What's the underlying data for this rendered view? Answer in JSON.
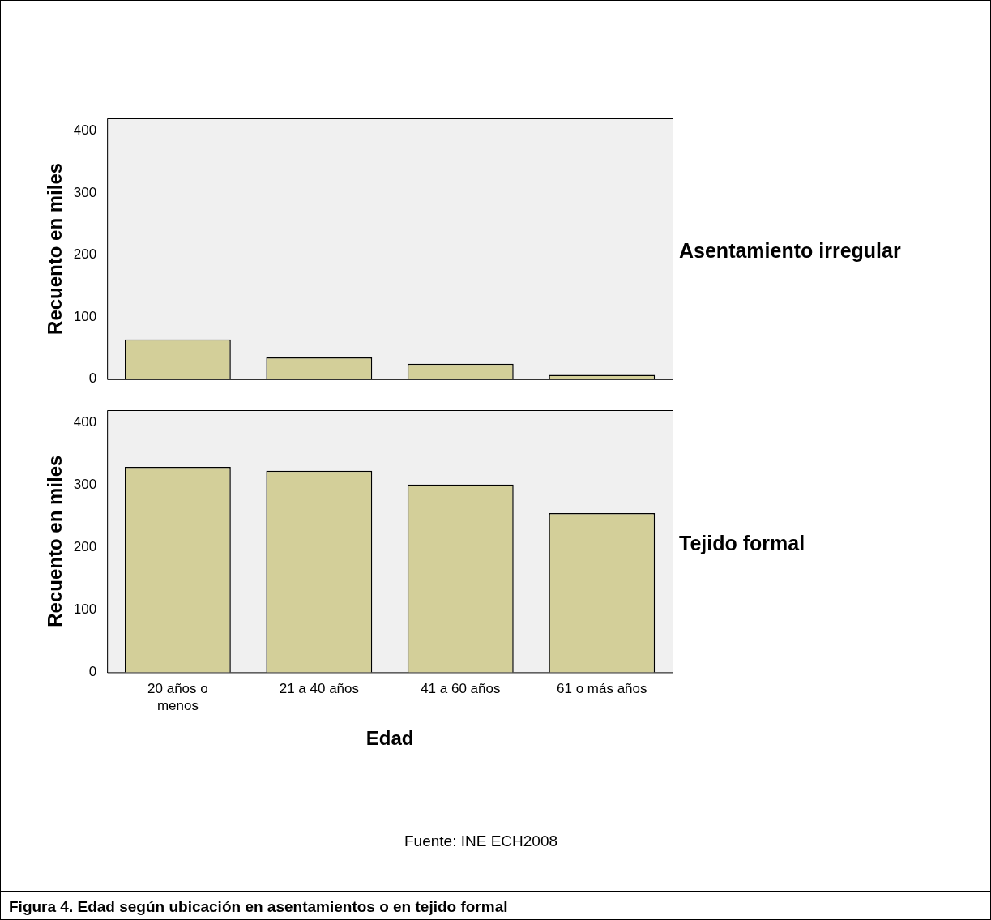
{
  "chart_data": [
    {
      "type": "bar",
      "categories": [
        null,
        null,
        null,
        null
      ],
      "values": [
        64,
        35,
        25,
        7
      ],
      "color": "#d3cf99",
      "ylabel": "Recuento en miles",
      "ylim": [
        0,
        420
      ],
      "yticks": [
        0,
        100,
        200,
        300,
        400
      ],
      "tick_labels": "y",
      "annotations": [
        "Asentamiento irregular"
      ]
    },
    {
      "type": "bar",
      "categories": [
        "20 años o menos",
        "21 a 40 años",
        "41 a 60 años",
        "61 o más años"
      ],
      "values": [
        329,
        323,
        301,
        255
      ],
      "color": "#d3cf99",
      "xlabel": "Edad",
      "ylabel": "Recuento en miles",
      "ylim": [
        0,
        420
      ],
      "yticks": [
        0,
        100,
        200,
        300,
        400
      ],
      "annotations": [
        "Tejido formal",
        "Fuente: INE ECH2008",
        "Figura 4. Edad según ubicación en asentamientos o en tejido formal"
      ]
    }
  ]
}
